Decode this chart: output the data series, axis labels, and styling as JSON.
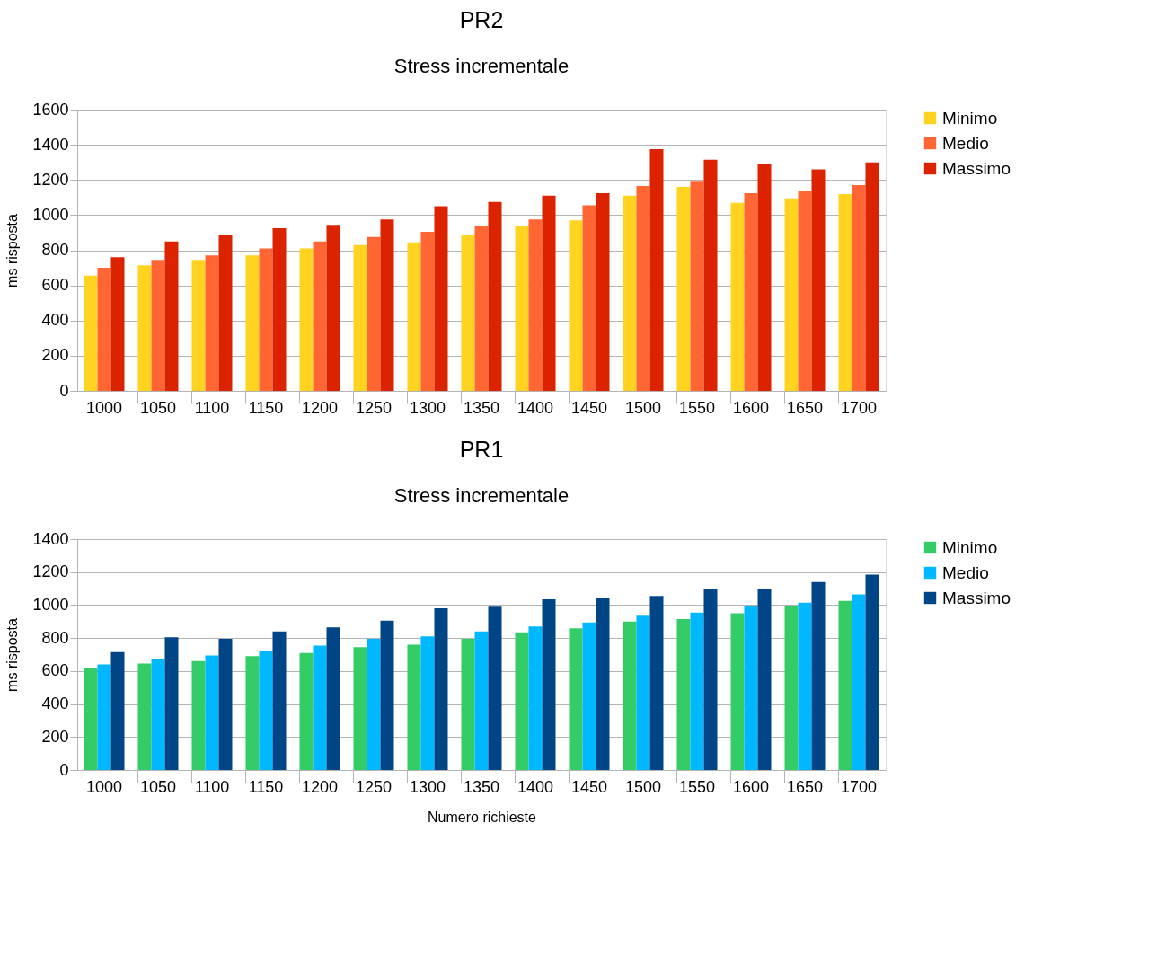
{
  "chart_data": [
    {
      "type": "bar",
      "title": "PR2",
      "subtitle": "Stress incrementale",
      "ylabel": "ms risposta",
      "categories": [
        "1000",
        "1050",
        "1100",
        "1150",
        "1200",
        "1250",
        "1300",
        "1350",
        "1400",
        "1450",
        "1500",
        "1550",
        "1600",
        "1650",
        "1700"
      ],
      "series": [
        {
          "name": "Minimo",
          "color": "#ffd320",
          "values": [
            655,
            715,
            745,
            770,
            810,
            830,
            845,
            890,
            940,
            970,
            1110,
            1160,
            1070,
            1095,
            1120
          ]
        },
        {
          "name": "Medio",
          "color": "#ff6633",
          "values": [
            700,
            745,
            770,
            810,
            850,
            875,
            905,
            935,
            975,
            1055,
            1165,
            1190,
            1125,
            1135,
            1170
          ]
        },
        {
          "name": "Massimo",
          "color": "#dc2300",
          "values": [
            760,
            850,
            890,
            925,
            945,
            975,
            1050,
            1075,
            1110,
            1125,
            1375,
            1315,
            1290,
            1260,
            1300
          ]
        }
      ],
      "ylim": [
        0,
        1600
      ],
      "yticks": [
        0,
        200,
        400,
        600,
        800,
        1000,
        1200,
        1400,
        1600
      ],
      "grid": "y",
      "legend": "right"
    },
    {
      "type": "bar",
      "title": "PR1",
      "subtitle": "Stress incrementale",
      "ylabel": "ms risposta",
      "xlabel": "Numero richieste",
      "categories": [
        "1000",
        "1050",
        "1100",
        "1150",
        "1200",
        "1250",
        "1300",
        "1350",
        "1400",
        "1450",
        "1500",
        "1550",
        "1600",
        "1650",
        "1700"
      ],
      "series": [
        {
          "name": "Minimo",
          "color": "#33cc66",
          "values": [
            615,
            645,
            660,
            690,
            710,
            745,
            760,
            795,
            835,
            860,
            900,
            915,
            950,
            995,
            1025
          ]
        },
        {
          "name": "Medio",
          "color": "#00b8ff",
          "values": [
            640,
            675,
            695,
            720,
            755,
            795,
            810,
            840,
            870,
            895,
            935,
            955,
            995,
            1015,
            1065
          ]
        },
        {
          "name": "Massimo",
          "color": "#004586",
          "values": [
            715,
            805,
            795,
            840,
            865,
            905,
            980,
            990,
            1035,
            1040,
            1055,
            1100,
            1100,
            1140,
            1185
          ]
        }
      ],
      "ylim": [
        0,
        1400
      ],
      "yticks": [
        0,
        200,
        400,
        600,
        800,
        1000,
        1200,
        1400
      ],
      "grid": "y",
      "legend": "right"
    }
  ]
}
